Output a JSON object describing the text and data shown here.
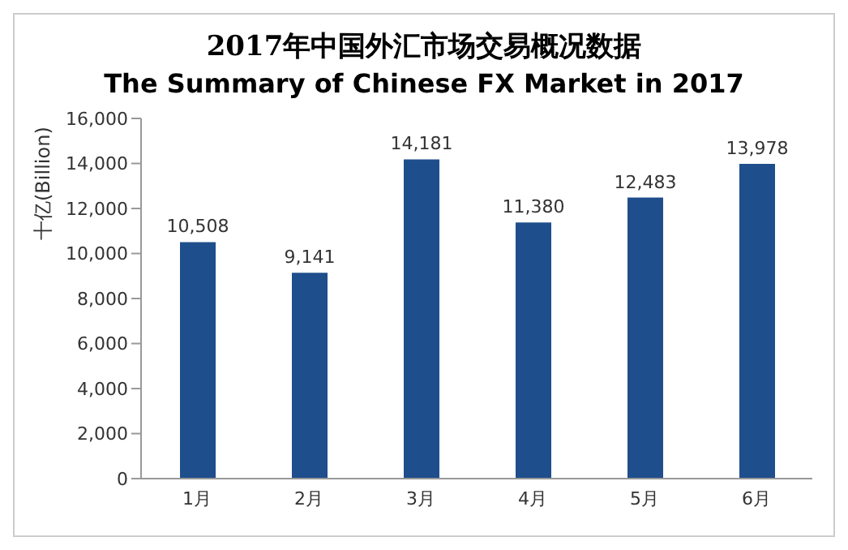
{
  "chart_data": {
    "type": "bar",
    "title": "2017年中国外汇市场交易概况数据",
    "subtitle": "The Summary of Chinese FX Market in 2017",
    "ylabel": "十亿(Billion)",
    "categories": [
      "1月",
      "2月",
      "3月",
      "4月",
      "5月",
      "6月"
    ],
    "values": [
      10508,
      9141,
      14181,
      11380,
      12483,
      13978
    ],
    "color": "#1f4e8c",
    "ylim": [
      0,
      16000
    ],
    "yticks": [
      {
        "value": 0,
        "label": "0"
      },
      {
        "value": 2000,
        "label": "2,000"
      },
      {
        "value": 4000,
        "label": "4,000"
      },
      {
        "value": 6000,
        "label": "6,000"
      },
      {
        "value": 8000,
        "label": "8,000"
      },
      {
        "value": 10000,
        "label": "10,000"
      },
      {
        "value": 12000,
        "label": "12,000"
      },
      {
        "value": 14000,
        "label": "14,000"
      },
      {
        "value": 16000,
        "label": "16,000"
      }
    ],
    "value_labels": [
      "10,508",
      "9,141",
      "14,181",
      "11,380",
      "12,483",
      "13,978"
    ],
    "grid": false,
    "legend": false
  }
}
